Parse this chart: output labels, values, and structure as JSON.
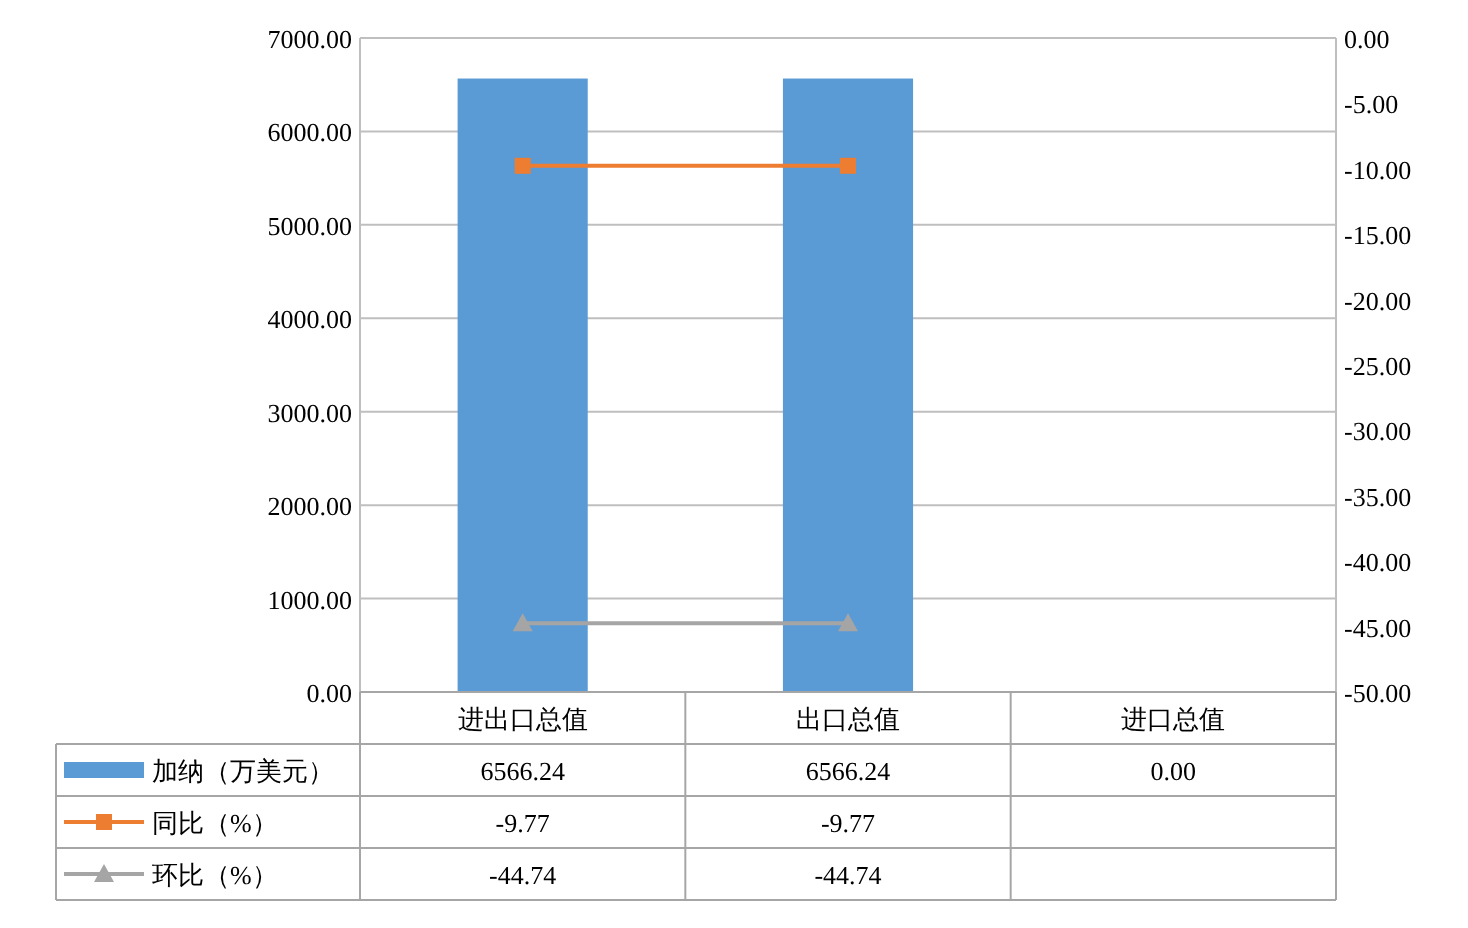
{
  "chart_data": {
    "type": "bar",
    "categories": [
      "进出口总值",
      "出口总值",
      "进口总值"
    ],
    "series": [
      {
        "name": "加纳（万美元）",
        "color": "#5b9bd5",
        "values": [
          6566.24,
          6566.24,
          0.0
        ],
        "value_labels": [
          "6566.24",
          "6566.24",
          "0.00"
        ]
      },
      {
        "name": "同比（%）",
        "type": "line",
        "axis": "y2",
        "marker": "square",
        "color": "#ed7d31",
        "values": [
          -9.77,
          -9.77,
          null
        ],
        "value_labels": [
          "-9.77",
          "-9.77",
          null
        ]
      },
      {
        "name": "环比（%）",
        "type": "line",
        "axis": "y2",
        "marker": "triangle",
        "color": "#a5a5a5",
        "values": [
          -44.74,
          -44.74,
          null
        ],
        "value_labels": [
          "-44.74",
          "-44.74",
          null
        ]
      }
    ],
    "ylim": [
      0,
      7000
    ],
    "yticks": [
      {
        "value": 0,
        "label": "0.00"
      },
      {
        "value": 1000,
        "label": "1000.00"
      },
      {
        "value": 2000,
        "label": "2000.00"
      },
      {
        "value": 3000,
        "label": "3000.00"
      },
      {
        "value": 4000,
        "label": "4000.00"
      },
      {
        "value": 5000,
        "label": "5000.00"
      },
      {
        "value": 6000,
        "label": "6000.00"
      },
      {
        "value": 7000,
        "label": "7000.00"
      }
    ],
    "y2lim": [
      -50,
      0
    ],
    "y2ticks": [
      {
        "value": -50,
        "label": "-50.00"
      },
      {
        "value": -45,
        "label": "-45.00"
      },
      {
        "value": -40,
        "label": "-40.00"
      },
      {
        "value": -35,
        "label": "-35.00"
      },
      {
        "value": -30,
        "label": "-30.00"
      },
      {
        "value": -25,
        "label": "-25.00"
      },
      {
        "value": -20,
        "label": "-20.00"
      },
      {
        "value": -15,
        "label": "-15.00"
      },
      {
        "value": -10,
        "label": "-10.00"
      },
      {
        "value": -5,
        "label": "-5.00"
      },
      {
        "value": 0,
        "label": "0.00"
      }
    ],
    "grid": "y",
    "legend": "bottom"
  }
}
